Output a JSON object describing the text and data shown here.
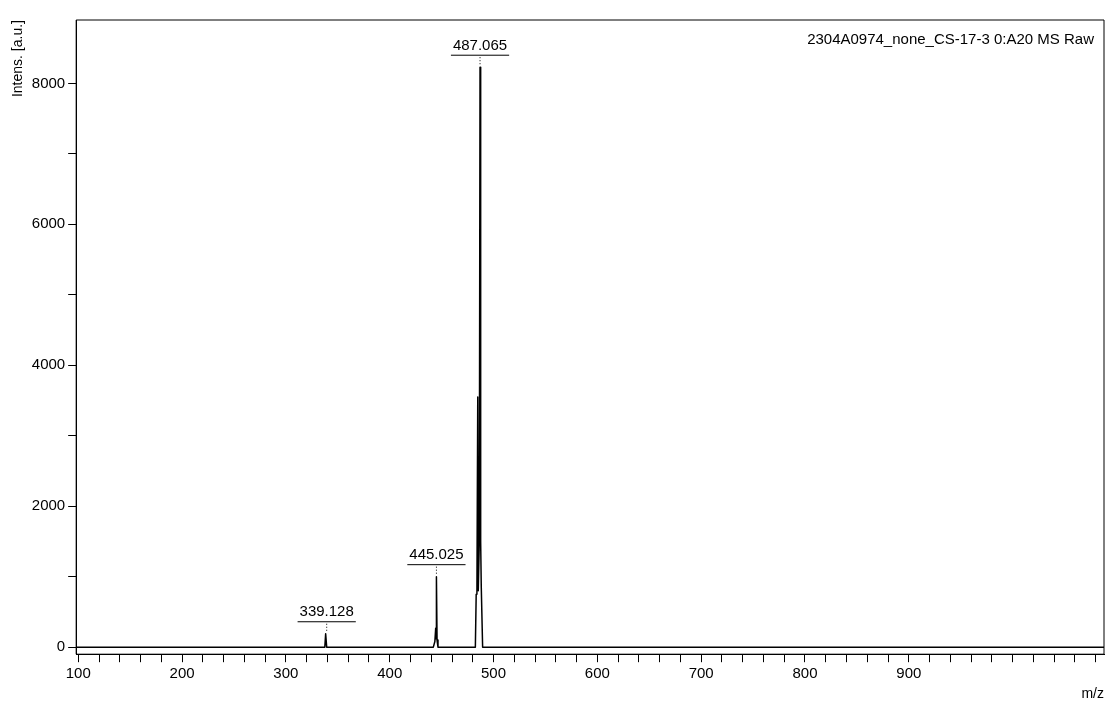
{
  "chart_data": {
    "type": "line",
    "xlabel": "m/z",
    "ylabel": "Intens. [a.u.]",
    "x": [
      98,
      337.5,
      338.3,
      339.3,
      442,
      443.5,
      444.3,
      444.6,
      445.0,
      445.6,
      446.5,
      482.5,
      483.3,
      484,
      484.8,
      485.3,
      486.3,
      487.0,
      487.6,
      488.2,
      489.5,
      1088
    ],
    "series": [
      {
        "color": "#000000",
        "values": [
          0,
          0,
          190,
          0,
          0,
          80,
          270,
          120,
          1000,
          100,
          0,
          0,
          750,
          780,
          3550,
          800,
          1500,
          8230,
          1500,
          850,
          0,
          0
        ]
      }
    ],
    "xlim": [
      98,
      1088
    ],
    "ylim": [
      -100,
      8900
    ],
    "xticks": [
      100,
      {
        "value": 120,
        "label": null
      },
      {
        "value": 140,
        "label": null
      },
      {
        "value": 160,
        "label": null
      },
      {
        "value": 180,
        "label": null
      },
      200,
      {
        "value": 220,
        "label": null
      },
      {
        "value": 240,
        "label": null
      },
      {
        "value": 260,
        "label": null
      },
      {
        "value": 280,
        "label": null
      },
      300,
      {
        "value": 320,
        "label": null
      },
      {
        "value": 340,
        "label": null
      },
      {
        "value": 360,
        "label": null
      },
      {
        "value": 380,
        "label": null
      },
      400,
      {
        "value": 420,
        "label": null
      },
      {
        "value": 440,
        "label": null
      },
      {
        "value": 460,
        "label": null
      },
      {
        "value": 480,
        "label": null
      },
      500,
      {
        "value": 520,
        "label": null
      },
      {
        "value": 540,
        "label": null
      },
      {
        "value": 560,
        "label": null
      },
      {
        "value": 580,
        "label": null
      },
      600,
      {
        "value": 620,
        "label": null
      },
      {
        "value": 640,
        "label": null
      },
      {
        "value": 660,
        "label": null
      },
      {
        "value": 680,
        "label": null
      },
      700,
      {
        "value": 720,
        "label": null
      },
      {
        "value": 740,
        "label": null
      },
      {
        "value": 760,
        "label": null
      },
      {
        "value": 780,
        "label": null
      },
      800,
      {
        "value": 820,
        "label": null
      },
      {
        "value": 840,
        "label": null
      },
      {
        "value": 860,
        "label": null
      },
      {
        "value": 880,
        "label": null
      },
      900,
      {
        "value": 920,
        "label": null
      },
      {
        "value": 940,
        "label": null
      },
      {
        "value": 960,
        "label": null
      },
      {
        "value": 980,
        "label": null
      },
      {
        "value": 1000,
        "label": null
      },
      {
        "value": 1020,
        "label": null
      },
      {
        "value": 1040,
        "label": null
      },
      {
        "value": 1060,
        "label": null
      },
      {
        "value": 1080,
        "label": null
      }
    ],
    "yticks": [
      0,
      {
        "value": 1000,
        "label": null
      },
      2000,
      {
        "value": 3000,
        "label": null
      },
      4000,
      {
        "value": 5000,
        "label": null
      },
      6000,
      {
        "value": 7000,
        "label": null
      },
      8000
    ],
    "annotations": [
      "2304A0974_none_CS-17-3 0:A20 MS Raw",
      {
        "text": "339.128",
        "x": 339.3,
        "y": 190
      },
      {
        "text": "445.025",
        "x": 445.0,
        "y": 1000
      },
      {
        "text": "487.065",
        "x": 487.0,
        "y": 8230
      }
    ],
    "grid": false,
    "legend": false,
    "marker": "none",
    "line_style": "solid"
  }
}
